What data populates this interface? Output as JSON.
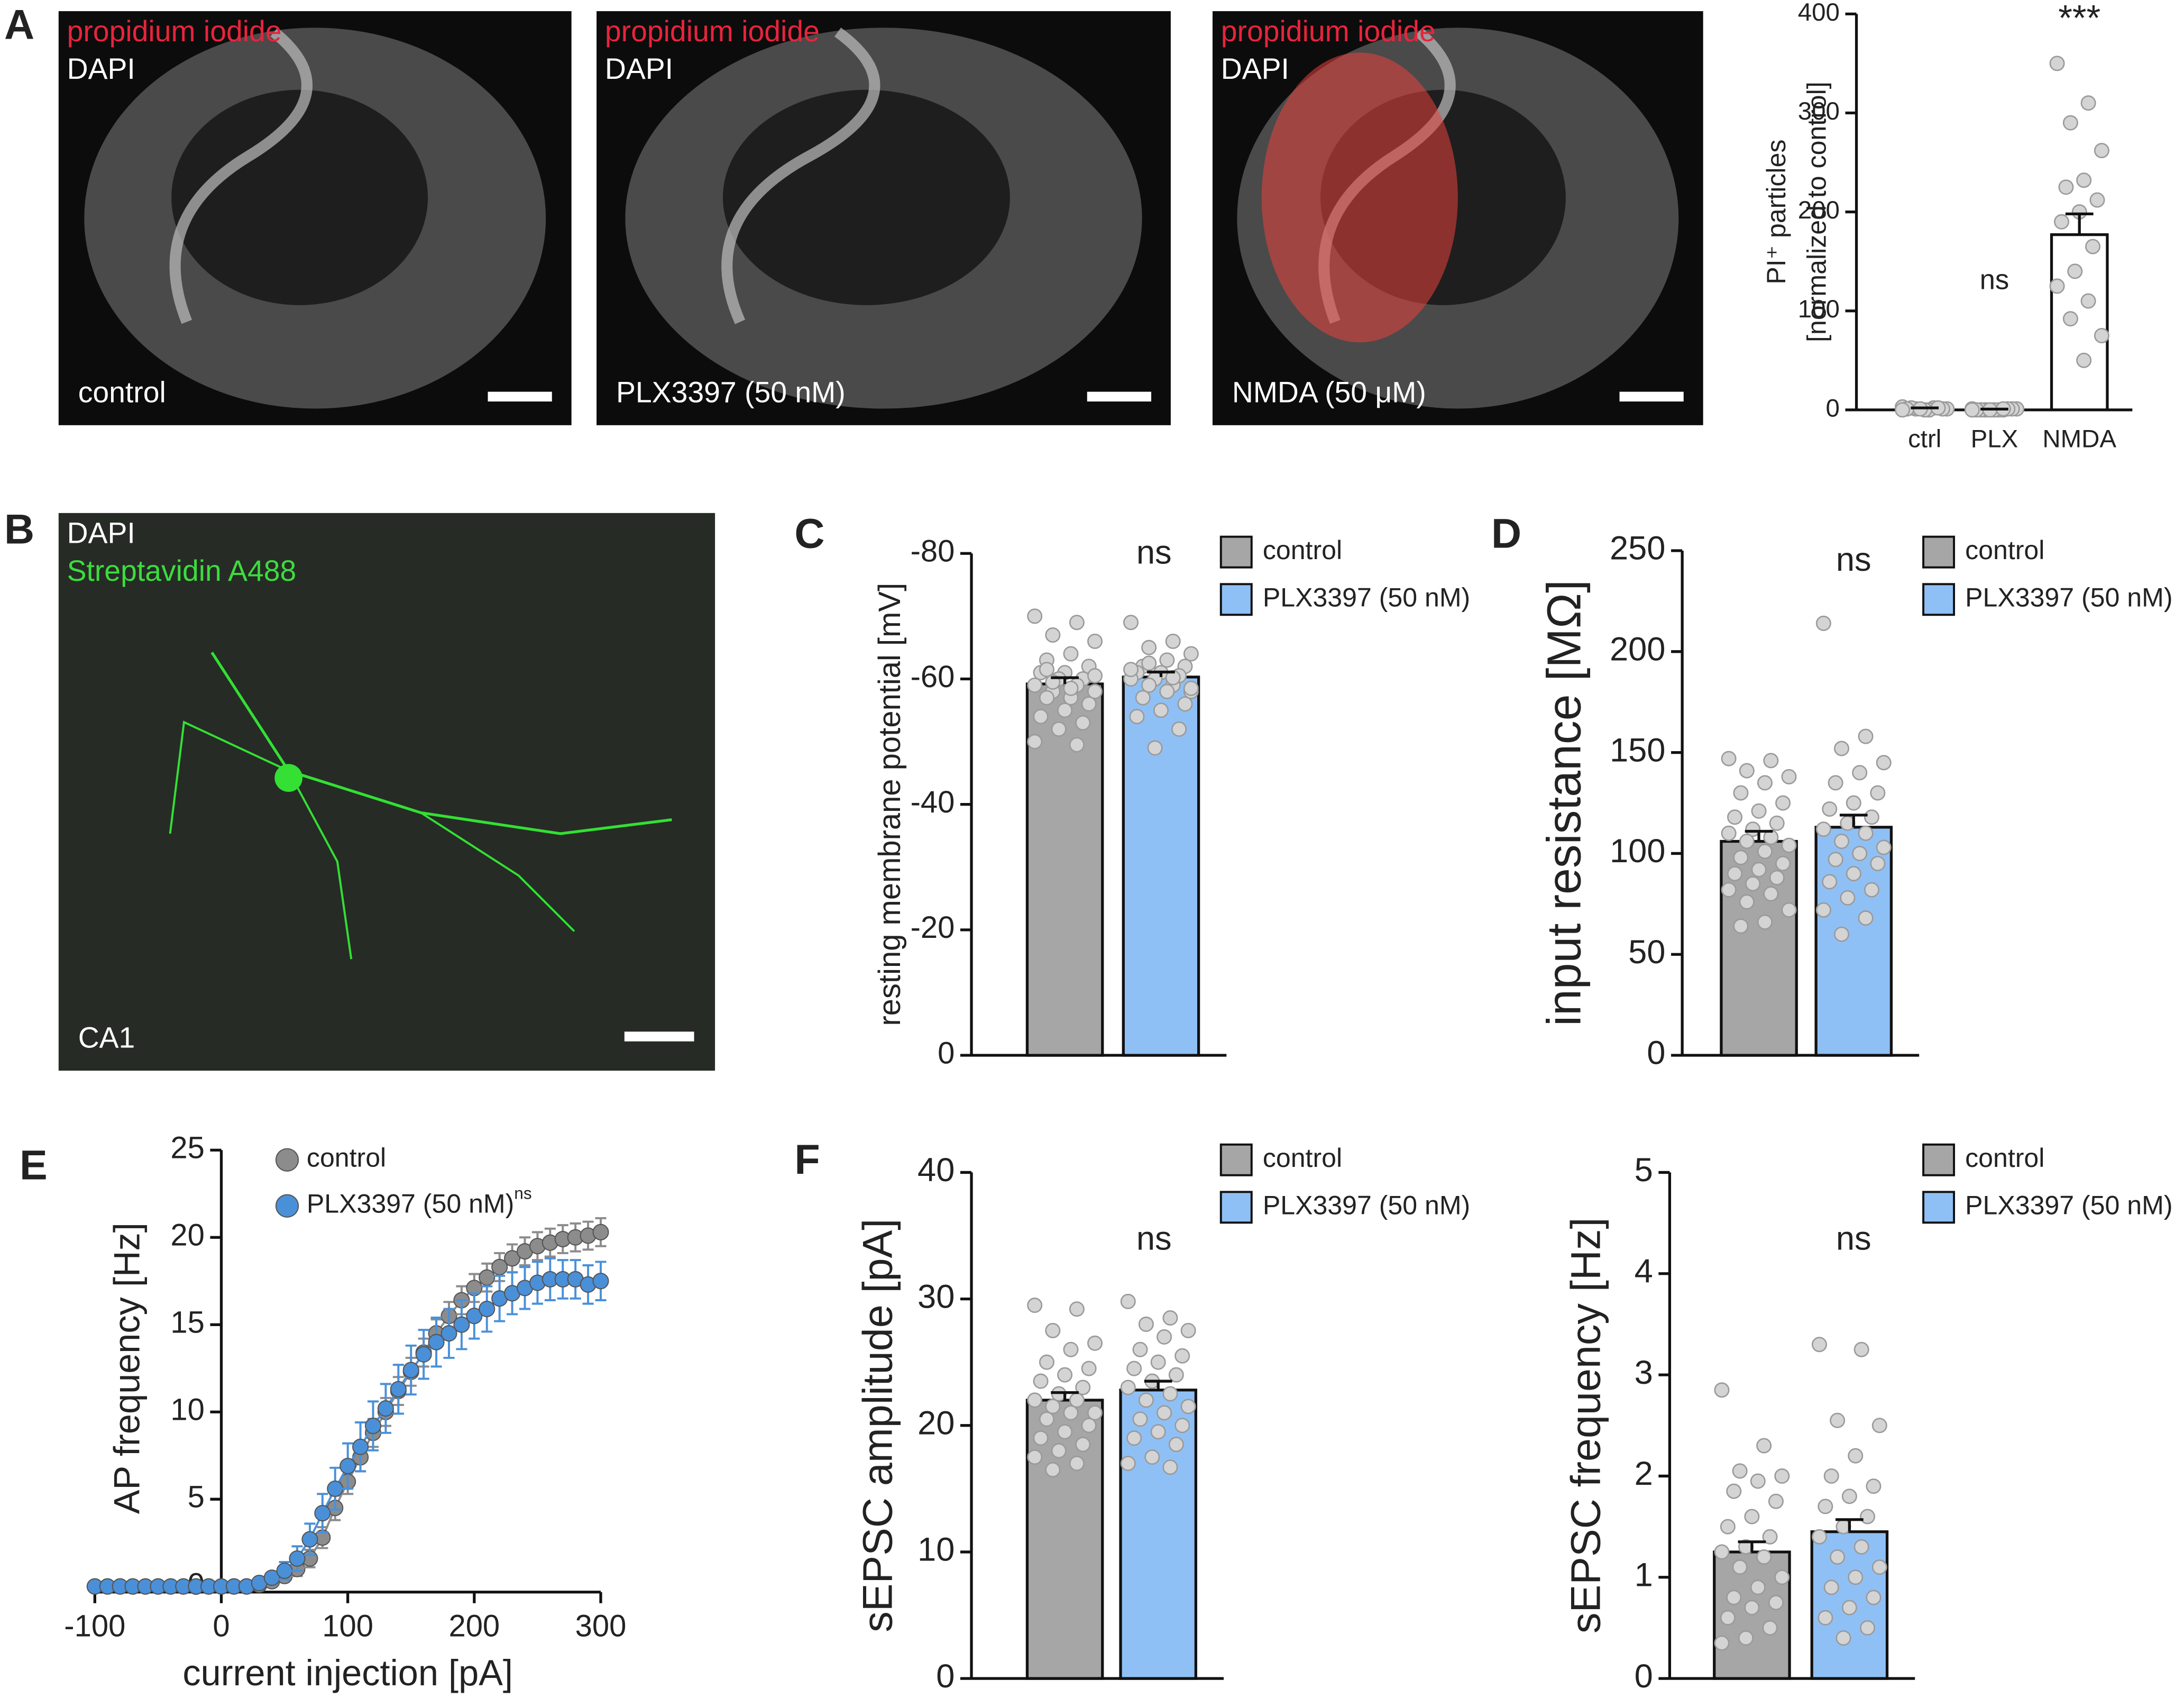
{
  "images": [
    {
      "panel": "A",
      "labels": [
        "propidium iodide",
        "DAPI"
      ],
      "label_colors": [
        "#e8243c",
        "#ffffff"
      ],
      "caption": "control"
    },
    {
      "labels": [
        "propidium iodide",
        "DAPI"
      ],
      "label_colors": [
        "#e8243c",
        "#ffffff"
      ],
      "caption": "PLX3397 (50 nM)"
    },
    {
      "labels": [
        "propidium iodide",
        "DAPI"
      ],
      "label_colors": [
        "#e8243c",
        "#ffffff"
      ],
      "caption": "NMDA (50 μM)"
    },
    {
      "panel": "B",
      "labels": [
        "DAPI",
        "Streptavidin A488"
      ],
      "label_colors": [
        "#ffffff",
        "#3ddc3d"
      ],
      "caption": "CA1"
    }
  ],
  "chart_data": [
    {
      "type": "bar",
      "panel": "A",
      "ylabel": [
        "PI⁺ particles",
        "[normalized to control]"
      ],
      "categories": [
        "ctrl",
        "PLX",
        "NMDA"
      ],
      "values": [
        1.5,
        0.5,
        177
      ],
      "errors": [
        0.5,
        0.3,
        21
      ],
      "points": [
        [
          3,
          2,
          1,
          1,
          0,
          2,
          1,
          0,
          1,
          2,
          1,
          0
        ],
        [
          1,
          0,
          0,
          1,
          0,
          0,
          1,
          0,
          0,
          1,
          0,
          0,
          1
        ],
        [
          350,
          310,
          290,
          262,
          232,
          225,
          212,
          200,
          190,
          165,
          140,
          125,
          110,
          92,
          75,
          50
        ]
      ],
      "color": "#ffffff",
      "annotations": [
        null,
        "ns",
        "***"
      ],
      "ylim": [
        0,
        400
      ],
      "yticks": [
        0,
        100,
        200,
        300,
        400
      ]
    },
    {
      "type": "bar",
      "panel": "C",
      "ylabel": "resting membrane potential [mV]",
      "annotation": "ns",
      "series": [
        {
          "name": "control",
          "color": "#a6a6a6",
          "values": [
            -59.2
          ],
          "errors": [
            1.0
          ],
          "points": [
            -70,
            -69,
            -67,
            -66,
            -64,
            -63,
            -62,
            -61,
            -61,
            -60,
            -60,
            -59,
            -59,
            -58,
            -58,
            -57,
            -57,
            -56,
            -55,
            -54,
            -53,
            -52,
            -50,
            -49.5,
            -59.5,
            -60.5,
            -58.5,
            -61.5
          ]
        },
        {
          "name": "PLX3397 (50 nM)",
          "color": "#8fc0f5",
          "values": [
            -60.3
          ],
          "errors": [
            0.8
          ],
          "points": [
            -69,
            -66,
            -65,
            -64,
            -63,
            -62,
            -62,
            -61,
            -61,
            -60.5,
            -60,
            -60,
            -59,
            -59,
            -58,
            -58,
            -57,
            -56,
            -55,
            -54,
            -52,
            -49,
            -61.5,
            -60.2,
            -62.5,
            -58.5
          ]
        }
      ],
      "ylim": [
        0,
        -80
      ],
      "yticks": [
        0,
        -20,
        -40,
        -60,
        -80
      ]
    },
    {
      "type": "bar",
      "panel": "D",
      "ylabel": "input resistance [MΩ]",
      "annotation": "ns",
      "series": [
        {
          "name": "control",
          "color": "#a6a6a6",
          "values": [
            106
          ],
          "errors": [
            5
          ],
          "points": [
            147,
            146,
            141,
            138,
            135,
            130,
            125,
            121,
            118,
            115,
            112,
            110,
            108,
            106,
            104,
            101,
            98,
            95,
            92,
            90,
            88,
            85,
            82,
            80,
            76,
            72,
            66,
            64
          ]
        },
        {
          "name": "PLX3397 (50 nM)",
          "color": "#8fc0f5",
          "values": [
            113
          ],
          "errors": [
            6
          ],
          "points": [
            214,
            158,
            152,
            145,
            140,
            135,
            130,
            125,
            122,
            118,
            115,
            112,
            110,
            106,
            103,
            100,
            97,
            95,
            90,
            86,
            82,
            78,
            72,
            68,
            60
          ]
        }
      ],
      "ylim": [
        0,
        250
      ],
      "yticks": [
        0,
        50,
        100,
        150,
        200,
        250
      ]
    },
    {
      "type": "line",
      "panel": "E",
      "xlabel": "current injection [pA]",
      "ylabel": "AP frequency [Hz]",
      "x": [
        -100,
        -90,
        -80,
        -70,
        -60,
        -50,
        -40,
        -30,
        -20,
        -10,
        0,
        10,
        20,
        30,
        40,
        50,
        60,
        70,
        80,
        90,
        100,
        110,
        120,
        130,
        140,
        150,
        160,
        170,
        180,
        190,
        200,
        210,
        220,
        230,
        240,
        250,
        260,
        270,
        280,
        290,
        300
      ],
      "series": [
        {
          "name": "control",
          "color": "#8c8c8c",
          "values": [
            0,
            0,
            0,
            0,
            0,
            0,
            0,
            0,
            0,
            0,
            0,
            0,
            0,
            0.1,
            0.3,
            0.6,
            1.0,
            1.6,
            2.8,
            4.5,
            6.0,
            7.4,
            8.8,
            10.0,
            11.2,
            12.3,
            13.4,
            14.5,
            15.5,
            16.4,
            17.1,
            17.7,
            18.3,
            18.8,
            19.2,
            19.5,
            19.7,
            19.9,
            20.0,
            20.1,
            20.3
          ],
          "errors": [
            0,
            0,
            0,
            0,
            0,
            0,
            0,
            0,
            0,
            0,
            0,
            0,
            0,
            0.1,
            0.2,
            0.3,
            0.4,
            0.5,
            0.6,
            0.7,
            0.7,
            0.8,
            0.8,
            0.8,
            0.8,
            0.8,
            0.8,
            0.8,
            0.8,
            0.8,
            0.8,
            0.8,
            0.8,
            0.8,
            0.8,
            0.8,
            0.8,
            0.8,
            0.8,
            0.8,
            0.8
          ]
        },
        {
          "name": "PLX3397 (50 nM)",
          "legend_note": "ns",
          "color": "#4a90d9",
          "values": [
            0,
            0,
            0,
            0,
            0,
            0,
            0,
            0,
            0,
            0,
            0,
            0,
            0,
            0.2,
            0.5,
            0.9,
            1.6,
            2.7,
            4.2,
            5.6,
            6.9,
            8.0,
            9.2,
            10.2,
            11.3,
            12.4,
            13.3,
            14.0,
            14.5,
            15.0,
            15.5,
            15.9,
            16.5,
            16.8,
            17.1,
            17.4,
            17.6,
            17.6,
            17.6,
            17.3,
            17.5
          ],
          "errors": [
            0,
            0,
            0,
            0,
            0,
            0,
            0,
            0,
            0,
            0,
            0,
            0,
            0,
            0.2,
            0.3,
            0.5,
            0.7,
            0.9,
            1.1,
            1.2,
            1.3,
            1.4,
            1.4,
            1.4,
            1.4,
            1.4,
            1.4,
            1.4,
            1.4,
            1.4,
            1.3,
            1.3,
            1.3,
            1.2,
            1.2,
            1.2,
            1.2,
            1.1,
            1.1,
            1.1,
            1.1
          ]
        }
      ],
      "xlim": [
        -100,
        300
      ],
      "xticks": [
        -100,
        0,
        100,
        200,
        300
      ],
      "ylim": [
        0,
        25
      ],
      "yticks": [
        0,
        5,
        10,
        15,
        20,
        25
      ]
    },
    {
      "type": "bar",
      "panel": "F",
      "ylabel": "sEPSC amplitude [pA]",
      "annotation": "ns",
      "series": [
        {
          "name": "control",
          "color": "#a6a6a6",
          "values": [
            22
          ],
          "errors": [
            0.6
          ],
          "points": [
            29.5,
            29.2,
            27.5,
            26.5,
            26,
            25,
            24.5,
            24,
            23.5,
            23,
            22.5,
            22,
            22,
            21.5,
            21,
            21,
            20.5,
            20,
            19.5,
            19,
            18.5,
            18,
            17.5,
            17,
            16.5
          ]
        },
        {
          "name": "PLX3397 (50 nM)",
          "color": "#8fc0f5",
          "values": [
            22.8
          ],
          "errors": [
            0.7
          ],
          "points": [
            29.8,
            28.5,
            28,
            27.5,
            27,
            26,
            25.5,
            25,
            24.5,
            24,
            23.5,
            23,
            22.5,
            22,
            21.5,
            21,
            20.5,
            20,
            19.5,
            19,
            18.5,
            17.5,
            17,
            16.7
          ]
        }
      ],
      "ylim": [
        0,
        40
      ],
      "yticks": [
        0,
        10,
        20,
        30,
        40
      ]
    },
    {
      "type": "bar",
      "ylabel": "sEPSC frequency [Hz]",
      "annotation": "ns",
      "series": [
        {
          "name": "control",
          "color": "#a6a6a6",
          "values": [
            1.25
          ],
          "errors": [
            0.1
          ],
          "points": [
            2.85,
            2.3,
            2.05,
            2.0,
            1.95,
            1.85,
            1.75,
            1.6,
            1.5,
            1.4,
            1.3,
            1.25,
            1.2,
            1.1,
            1.0,
            0.9,
            0.8,
            0.75,
            0.7,
            0.6,
            0.5,
            0.4,
            0.35
          ]
        },
        {
          "name": "PLX3397 (50 nM)",
          "color": "#8fc0f5",
          "values": [
            1.45
          ],
          "errors": [
            0.12
          ],
          "points": [
            3.3,
            3.25,
            2.55,
            2.5,
            2.2,
            2.0,
            1.9,
            1.8,
            1.7,
            1.6,
            1.5,
            1.4,
            1.3,
            1.2,
            1.1,
            1.0,
            0.9,
            0.8,
            0.7,
            0.6,
            0.5,
            0.4
          ]
        }
      ],
      "ylim": [
        0,
        5
      ],
      "yticks": [
        0,
        1,
        2,
        3,
        4,
        5
      ]
    }
  ]
}
